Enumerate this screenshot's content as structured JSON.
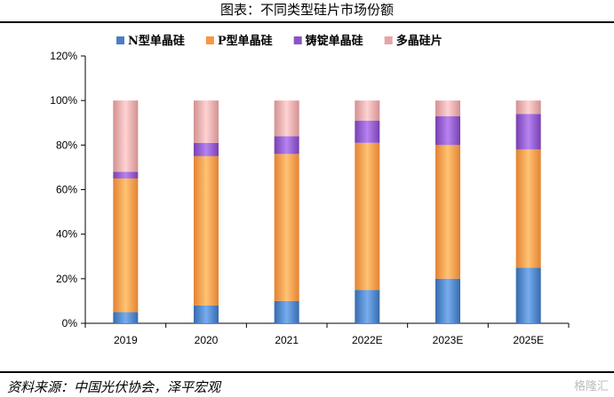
{
  "title": "图表：不同类型硅片市场份额",
  "source": "资料来源：中国光伏协会，泽平宏观",
  "watermark": "格隆汇",
  "chart_data": {
    "type": "bar",
    "stacked": true,
    "categories": [
      "2019",
      "2020",
      "2021",
      "2022E",
      "2023E",
      "2025E"
    ],
    "series": [
      {
        "name": "N型单晶硅",
        "color": "#4a7fc1",
        "values": [
          5,
          8,
          10,
          15,
          20,
          25
        ]
      },
      {
        "name": "P型单晶硅",
        "color": "#f79646",
        "values": [
          60,
          67,
          66,
          66,
          60,
          53
        ]
      },
      {
        "name": "铸锭单晶硅",
        "color": "#8a55c4",
        "values": [
          3,
          6,
          8,
          10,
          13,
          16
        ]
      },
      {
        "name": "多晶硅片",
        "color": "#e6a5a5",
        "values": [
          32,
          19,
          16,
          9,
          7,
          6
        ]
      }
    ],
    "ylim": [
      0,
      120
    ],
    "yticks": [
      "0%",
      "20%",
      "40%",
      "60%",
      "80%",
      "100%",
      "120%"
    ],
    "legend_position": "top",
    "grid": false
  }
}
